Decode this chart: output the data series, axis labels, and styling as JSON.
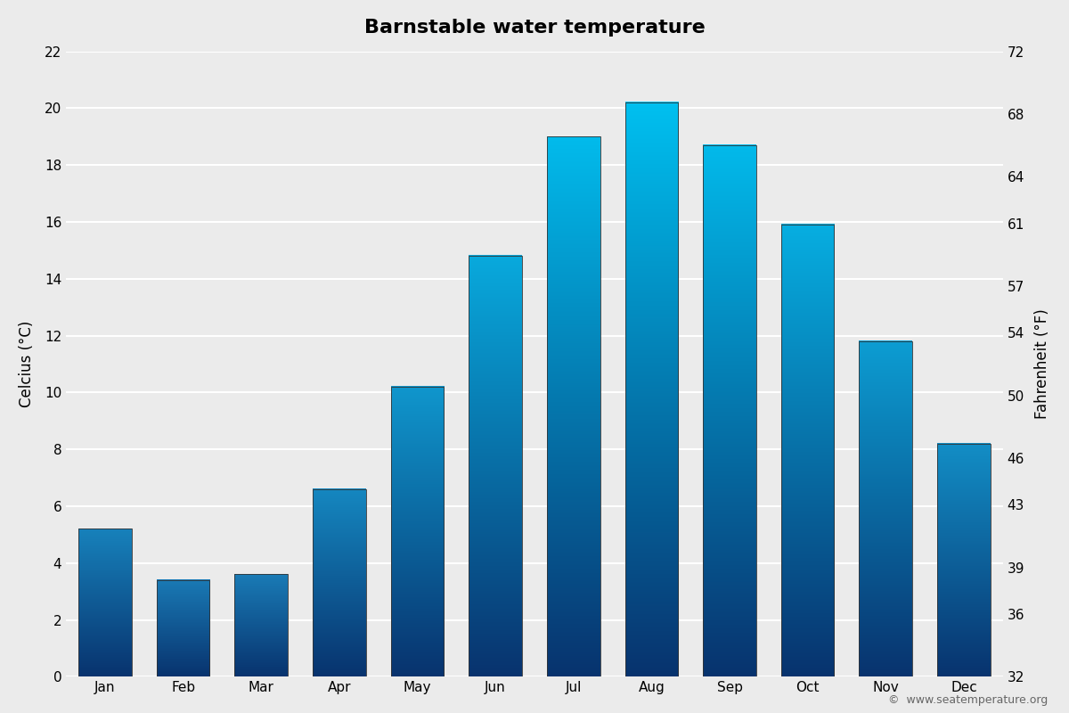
{
  "title": "Barnstable water temperature",
  "months": [
    "Jan",
    "Feb",
    "Mar",
    "Apr",
    "May",
    "Jun",
    "Jul",
    "Aug",
    "Sep",
    "Oct",
    "Nov",
    "Dec"
  ],
  "values_c": [
    5.2,
    3.4,
    3.6,
    6.6,
    10.2,
    14.8,
    19.0,
    20.2,
    18.7,
    15.9,
    11.8,
    8.2
  ],
  "ylabel_left": "Celcius (°C)",
  "ylabel_right": "Fahrenheit (°F)",
  "ylim_c": [
    0,
    22
  ],
  "ylim_f": [
    32,
    72
  ],
  "yticks_c": [
    0,
    2,
    4,
    6,
    8,
    10,
    12,
    14,
    16,
    18,
    20,
    22
  ],
  "yticks_f": [
    32,
    36,
    39,
    43,
    46,
    50,
    54,
    57,
    61,
    64,
    68,
    72
  ],
  "background_color": "#ebebeb",
  "plot_bg_color": "#ebebeb",
  "bar_color_bottom": "#08336e",
  "bar_color_top_cold": "#1a7ab5",
  "bar_color_top_warm": "#00c0f0",
  "grid_color": "#ffffff",
  "copyright_text": "©  www.seatemperature.org",
  "title_fontsize": 16,
  "axis_label_fontsize": 12,
  "tick_fontsize": 11,
  "bar_width": 0.68
}
